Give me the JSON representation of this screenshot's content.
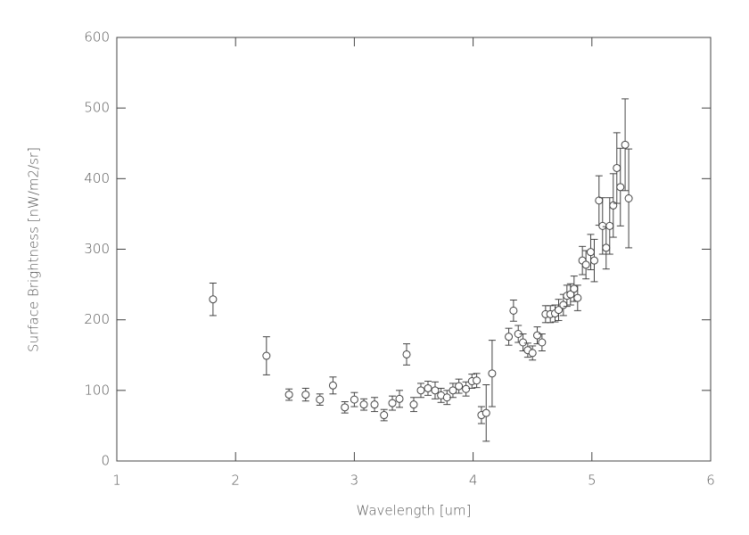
{
  "chart_data": {
    "type": "scatter",
    "xlabel": "Wavelength [um]",
    "ylabel": "Surface Brightness [nW/m2/sr]",
    "x": [
      1.81,
      2.26,
      2.45,
      2.59,
      2.71,
      2.82,
      2.92,
      3.0,
      3.08,
      3.17,
      3.25,
      3.32,
      3.38,
      3.44,
      3.5,
      3.56,
      3.62,
      3.68,
      3.73,
      3.78,
      3.83,
      3.88,
      3.94,
      3.99,
      4.03,
      4.07,
      4.11,
      4.16,
      4.3,
      4.34,
      4.38,
      4.42,
      4.46,
      4.5,
      4.54,
      4.58,
      4.61,
      4.65,
      4.69,
      4.72,
      4.76,
      4.79,
      4.82,
      4.85,
      4.88,
      4.92,
      4.95,
      4.99,
      5.02,
      5.06,
      5.09,
      5.12,
      5.15,
      5.18,
      5.21,
      5.24,
      5.28,
      5.31
    ],
    "values": [
      229,
      149,
      94,
      94,
      87,
      107,
      76,
      87,
      80,
      80,
      65,
      82,
      88,
      151,
      80,
      100,
      103,
      100,
      93,
      90,
      100,
      106,
      102,
      113,
      114,
      65,
      68,
      124,
      176,
      213,
      180,
      168,
      157,
      153,
      178,
      168,
      208,
      208,
      209,
      214,
      221,
      234,
      236,
      244,
      231,
      284,
      278,
      296,
      284,
      369,
      333,
      302,
      333,
      362,
      415,
      388,
      448,
      372
    ],
    "errors": [
      23,
      27,
      8,
      9,
      8,
      12,
      8,
      10,
      8,
      10,
      8,
      10,
      12,
      15,
      10,
      10,
      10,
      12,
      10,
      10,
      10,
      10,
      10,
      10,
      10,
      12,
      40,
      47,
      12,
      15,
      12,
      12,
      10,
      10,
      12,
      12,
      12,
      12,
      12,
      15,
      15,
      15,
      15,
      18,
      18,
      20,
      20,
      25,
      30,
      35,
      40,
      30,
      40,
      45,
      50,
      55,
      65,
      70
    ],
    "color": "#444444",
    "xlim": [
      1,
      6
    ],
    "xticks": [
      1,
      2,
      3,
      4,
      5,
      6
    ],
    "ylim": [
      0,
      600
    ],
    "yticks": [
      0,
      100,
      200,
      300,
      400,
      500,
      600
    ]
  }
}
